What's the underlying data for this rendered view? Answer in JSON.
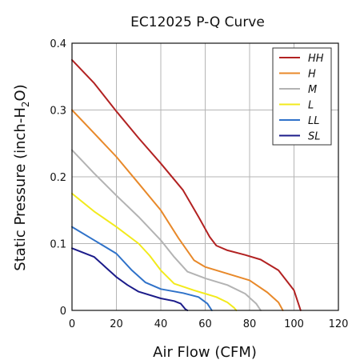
{
  "chart_data": {
    "type": "line",
    "title": "EC12025 P-Q Curve",
    "xlabel": "Air Flow (CFM)",
    "ylabel": {
      "main": "Static Pressure (inch-H",
      "sub": "2",
      "tail": "O)"
    },
    "xlim": [
      0,
      120
    ],
    "ylim": [
      0,
      0.4
    ],
    "xticks": [
      "0",
      "20",
      "40",
      "60",
      "80",
      "100",
      "120"
    ],
    "yticks": [
      "0",
      "0.1",
      "0.2",
      "0.3",
      "0.4"
    ],
    "grid": true,
    "legend_position": "top-right",
    "series": [
      {
        "name": "HH",
        "color": "#b22222",
        "points": [
          [
            0,
            0.375
          ],
          [
            10,
            0.34
          ],
          [
            20,
            0.298
          ],
          [
            30,
            0.258
          ],
          [
            40,
            0.22
          ],
          [
            50,
            0.18
          ],
          [
            57,
            0.14
          ],
          [
            62,
            0.11
          ],
          [
            65,
            0.097
          ],
          [
            70,
            0.09
          ],
          [
            78,
            0.083
          ],
          [
            85,
            0.076
          ],
          [
            93,
            0.06
          ],
          [
            100,
            0.03
          ],
          [
            103,
            0
          ]
        ]
      },
      {
        "name": "H",
        "color": "#e8892a",
        "points": [
          [
            0,
            0.3
          ],
          [
            10,
            0.265
          ],
          [
            20,
            0.23
          ],
          [
            30,
            0.19
          ],
          [
            40,
            0.15
          ],
          [
            48,
            0.108
          ],
          [
            55,
            0.075
          ],
          [
            60,
            0.065
          ],
          [
            70,
            0.055
          ],
          [
            80,
            0.045
          ],
          [
            88,
            0.027
          ],
          [
            93,
            0.012
          ],
          [
            95,
            0
          ]
        ]
      },
      {
        "name": "M",
        "color": "#b3b3b3",
        "points": [
          [
            0,
            0.24
          ],
          [
            10,
            0.205
          ],
          [
            20,
            0.172
          ],
          [
            30,
            0.14
          ],
          [
            40,
            0.105
          ],
          [
            46,
            0.08
          ],
          [
            52,
            0.058
          ],
          [
            60,
            0.048
          ],
          [
            70,
            0.038
          ],
          [
            78,
            0.025
          ],
          [
            83,
            0.01
          ],
          [
            85,
            0
          ]
        ]
      },
      {
        "name": "L",
        "color": "#f2ea1c",
        "points": [
          [
            0,
            0.175
          ],
          [
            10,
            0.148
          ],
          [
            20,
            0.125
          ],
          [
            30,
            0.1
          ],
          [
            35,
            0.082
          ],
          [
            40,
            0.06
          ],
          [
            46,
            0.04
          ],
          [
            55,
            0.03
          ],
          [
            65,
            0.02
          ],
          [
            70,
            0.012
          ],
          [
            73,
            0.004
          ],
          [
            74,
            0
          ]
        ]
      },
      {
        "name": "LL",
        "color": "#2f72c9",
        "points": [
          [
            0,
            0.125
          ],
          [
            10,
            0.105
          ],
          [
            20,
            0.085
          ],
          [
            27,
            0.06
          ],
          [
            33,
            0.042
          ],
          [
            40,
            0.032
          ],
          [
            50,
            0.026
          ],
          [
            57,
            0.02
          ],
          [
            61,
            0.01
          ],
          [
            63,
            0
          ]
        ]
      },
      {
        "name": "SL",
        "color": "#1b1b8a",
        "points": [
          [
            0,
            0.093
          ],
          [
            10,
            0.08
          ],
          [
            15,
            0.065
          ],
          [
            20,
            0.05
          ],
          [
            25,
            0.038
          ],
          [
            30,
            0.028
          ],
          [
            40,
            0.018
          ],
          [
            46,
            0.014
          ],
          [
            49,
            0.01
          ],
          [
            51,
            0.002
          ],
          [
            52,
            0
          ]
        ]
      }
    ]
  }
}
